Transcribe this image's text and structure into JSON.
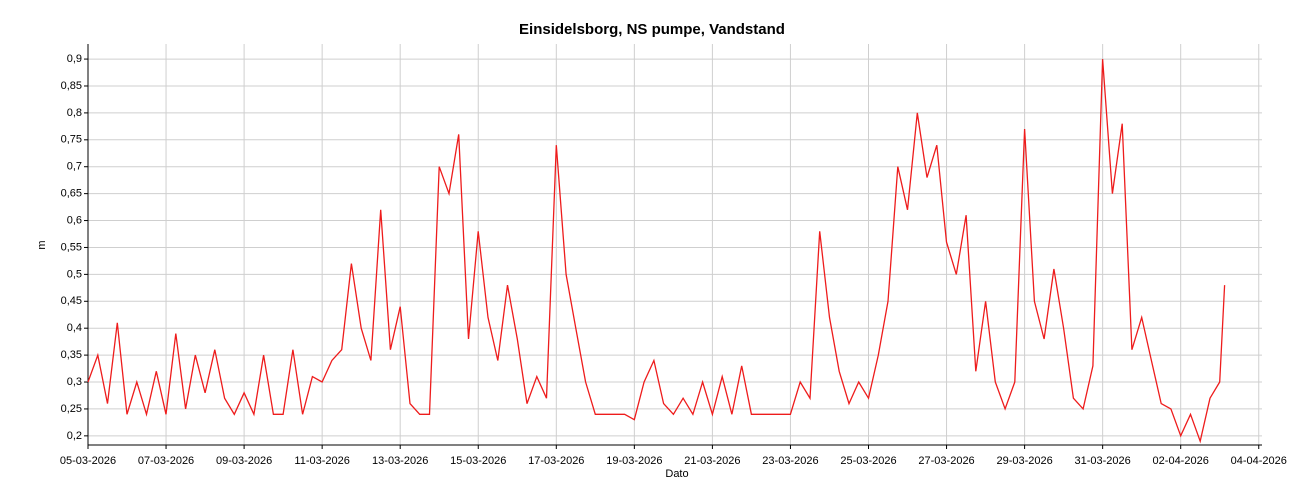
{
  "chart_data": {
    "type": "line",
    "title": "Einsidelsborg, NS pumpe, Vandstand",
    "x_label": "Dato",
    "y_label": "m",
    "x": [
      "2026-03-05T00:00",
      "2026-03-05T06:00",
      "2026-03-05T12:00",
      "2026-03-05T18:00",
      "2026-03-06T00:00",
      "2026-03-06T06:00",
      "2026-03-06T12:00",
      "2026-03-06T18:00",
      "2026-03-07T00:00",
      "2026-03-07T06:00",
      "2026-03-07T12:00",
      "2026-03-07T18:00",
      "2026-03-08T00:00",
      "2026-03-08T06:00",
      "2026-03-08T12:00",
      "2026-03-08T18:00",
      "2026-03-09T00:00",
      "2026-03-09T06:00",
      "2026-03-09T12:00",
      "2026-03-09T18:00",
      "2026-03-10T00:00",
      "2026-03-10T06:00",
      "2026-03-10T12:00",
      "2026-03-10T18:00",
      "2026-03-11T00:00",
      "2026-03-11T06:00",
      "2026-03-11T12:00",
      "2026-03-11T18:00",
      "2026-03-12T00:00",
      "2026-03-12T06:00",
      "2026-03-12T12:00",
      "2026-03-12T18:00",
      "2026-03-13T00:00",
      "2026-03-13T06:00",
      "2026-03-13T12:00",
      "2026-03-13T18:00",
      "2026-03-14T00:00",
      "2026-03-14T06:00",
      "2026-03-14T12:00",
      "2026-03-14T18:00",
      "2026-03-15T00:00",
      "2026-03-15T06:00",
      "2026-03-15T12:00",
      "2026-03-15T18:00",
      "2026-03-16T00:00",
      "2026-03-16T06:00",
      "2026-03-16T12:00",
      "2026-03-16T18:00",
      "2026-03-17T00:00",
      "2026-03-17T06:00",
      "2026-03-17T12:00",
      "2026-03-17T18:00",
      "2026-03-18T00:00",
      "2026-03-18T06:00",
      "2026-03-18T12:00",
      "2026-03-18T18:00",
      "2026-03-19T00:00",
      "2026-03-19T06:00",
      "2026-03-19T12:00",
      "2026-03-19T18:00",
      "2026-03-20T00:00",
      "2026-03-20T06:00",
      "2026-03-20T12:00",
      "2026-03-20T18:00",
      "2026-03-21T00:00",
      "2026-03-21T06:00",
      "2026-03-21T12:00",
      "2026-03-21T18:00",
      "2026-03-22T00:00",
      "2026-03-22T06:00",
      "2026-03-22T12:00",
      "2026-03-22T18:00",
      "2026-03-23T00:00",
      "2026-03-23T06:00",
      "2026-03-23T12:00",
      "2026-03-23T18:00",
      "2026-03-24T00:00",
      "2026-03-24T06:00",
      "2026-03-24T12:00",
      "2026-03-24T18:00",
      "2026-03-25T00:00",
      "2026-03-25T06:00",
      "2026-03-25T12:00",
      "2026-03-25T18:00",
      "2026-03-26T00:00",
      "2026-03-26T06:00",
      "2026-03-26T12:00",
      "2026-03-26T18:00",
      "2026-03-27T00:00",
      "2026-03-27T06:00",
      "2026-03-27T12:00",
      "2026-03-27T18:00",
      "2026-03-28T00:00",
      "2026-03-28T06:00",
      "2026-03-28T12:00",
      "2026-03-28T18:00",
      "2026-03-29T00:00",
      "2026-03-29T06:00",
      "2026-03-29T12:00",
      "2026-03-29T18:00",
      "2026-03-30T00:00",
      "2026-03-30T06:00",
      "2026-03-30T12:00",
      "2026-03-30T18:00",
      "2026-03-31T00:00",
      "2026-03-31T06:00",
      "2026-03-31T12:00",
      "2026-03-31T18:00",
      "2026-04-01T00:00",
      "2026-04-01T06:00",
      "2026-04-01T12:00",
      "2026-04-01T18:00",
      "2026-04-02T00:00",
      "2026-04-02T06:00",
      "2026-04-02T12:00",
      "2026-04-02T18:00",
      "2026-04-03T00:00",
      "2026-04-03T03:00"
    ],
    "series": [
      {
        "color": "#ee1c1c",
        "values": [
          0.3,
          0.35,
          0.26,
          0.41,
          0.24,
          0.3,
          0.24,
          0.32,
          0.24,
          0.39,
          0.25,
          0.35,
          0.28,
          0.36,
          0.27,
          0.24,
          0.28,
          0.24,
          0.35,
          0.24,
          0.24,
          0.36,
          0.24,
          0.31,
          0.3,
          0.34,
          0.36,
          0.52,
          0.4,
          0.34,
          0.62,
          0.36,
          0.44,
          0.26,
          0.24,
          0.24,
          0.7,
          0.65,
          0.76,
          0.38,
          0.58,
          0.42,
          0.34,
          0.48,
          0.38,
          0.26,
          0.31,
          0.27,
          0.74,
          0.5,
          0.4,
          0.3,
          0.24,
          0.24,
          0.24,
          0.24,
          0.23,
          0.3,
          0.34,
          0.26,
          0.24,
          0.27,
          0.24,
          0.3,
          0.24,
          0.31,
          0.24,
          0.33,
          0.24,
          0.24,
          0.24,
          0.24,
          0.24,
          0.3,
          0.27,
          0.58,
          0.42,
          0.32,
          0.26,
          0.3,
          0.27,
          0.35,
          0.45,
          0.7,
          0.62,
          0.8,
          0.68,
          0.74,
          0.56,
          0.5,
          0.61,
          0.32,
          0.45,
          0.3,
          0.25,
          0.3,
          0.77,
          0.45,
          0.38,
          0.51,
          0.4,
          0.27,
          0.25,
          0.33,
          0.9,
          0.65,
          0.78,
          0.36,
          0.42,
          0.34,
          0.26,
          0.25,
          0.2,
          0.24,
          0.19,
          0.27,
          0.3,
          0.48
        ]
      }
    ],
    "xlim": [
      "2026-03-05T00:00",
      "2026-04-04T02:00"
    ],
    "xticks": [
      {
        "value": "2026-03-05T00:00",
        "label": "05-03-2026"
      },
      {
        "value": "2026-03-07T00:00",
        "label": "07-03-2026"
      },
      {
        "value": "2026-03-09T00:00",
        "label": "09-03-2026"
      },
      {
        "value": "2026-03-11T00:00",
        "label": "11-03-2026"
      },
      {
        "value": "2026-03-13T00:00",
        "label": "13-03-2026"
      },
      {
        "value": "2026-03-15T00:00",
        "label": "15-03-2026"
      },
      {
        "value": "2026-03-17T00:00",
        "label": "17-03-2026"
      },
      {
        "value": "2026-03-19T00:00",
        "label": "19-03-2026"
      },
      {
        "value": "2026-03-21T00:00",
        "label": "21-03-2026"
      },
      {
        "value": "2026-03-23T00:00",
        "label": "23-03-2026"
      },
      {
        "value": "2026-03-25T00:00",
        "label": "25-03-2026"
      },
      {
        "value": "2026-03-27T00:00",
        "label": "27-03-2026"
      },
      {
        "value": "2026-03-29T00:00",
        "label": "29-03-2026"
      },
      {
        "value": "2026-03-31T00:00",
        "label": "31-03-2026"
      },
      {
        "value": "2026-04-02T00:00",
        "label": "02-04-2026"
      },
      {
        "value": "2026-04-04T00:00",
        "label": "04-04-2026"
      }
    ],
    "ylim": [
      0.183,
      0.928
    ],
    "yticks": [
      {
        "value": 0.2,
        "label": "0,2"
      },
      {
        "value": 0.25,
        "label": "0,25"
      },
      {
        "value": 0.3,
        "label": "0,3"
      },
      {
        "value": 0.35,
        "label": "0,35"
      },
      {
        "value": 0.4,
        "label": "0,4"
      },
      {
        "value": 0.45,
        "label": "0,45"
      },
      {
        "value": 0.5,
        "label": "0,5"
      },
      {
        "value": 0.55,
        "label": "0,55"
      },
      {
        "value": 0.6,
        "label": "0,6"
      },
      {
        "value": 0.65,
        "label": "0,65"
      },
      {
        "value": 0.7,
        "label": "0,7"
      },
      {
        "value": 0.75,
        "label": "0,75"
      },
      {
        "value": 0.8,
        "label": "0,8"
      },
      {
        "value": 0.85,
        "label": "0,85"
      },
      {
        "value": 0.9,
        "label": "0,9"
      }
    ],
    "grid": true
  }
}
